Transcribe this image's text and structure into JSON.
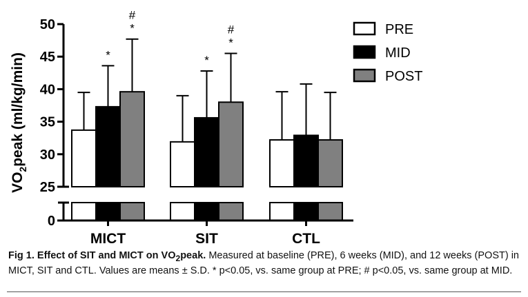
{
  "chart_data": {
    "type": "bar",
    "ylabel_main": "VO",
    "ylabel_sub": "2",
    "ylabel_rest": "peak (ml/kg/min)",
    "categories": [
      "MICT",
      "SIT",
      "CTL"
    ],
    "series": [
      {
        "name": "PRE",
        "values": [
          33.7,
          31.9,
          32.2
        ],
        "errors": [
          5.8,
          7.1,
          7.4
        ],
        "fill": "#ffffff"
      },
      {
        "name": "MID",
        "values": [
          37.3,
          35.6,
          32.9
        ],
        "errors": [
          6.3,
          7.2,
          7.9
        ],
        "fill": "#000000"
      },
      {
        "name": "POST",
        "values": [
          39.6,
          38.0,
          32.2
        ],
        "errors": [
          8.1,
          7.5,
          7.3
        ],
        "fill": "#808080"
      }
    ],
    "annotations": [
      {
        "category": "MICT",
        "series": "MID",
        "lines": [
          "*"
        ]
      },
      {
        "category": "MICT",
        "series": "POST",
        "lines": [
          "#",
          "*"
        ]
      },
      {
        "category": "SIT",
        "series": "MID",
        "lines": [
          "*"
        ]
      },
      {
        "category": "SIT",
        "series": "POST",
        "lines": [
          "#",
          "*"
        ]
      }
    ],
    "yticks_upper": [
      25,
      30,
      35,
      40,
      45,
      50
    ],
    "yticks_lower": [
      0
    ],
    "ylim": [
      0,
      50
    ],
    "axis_break": [
      0,
      25
    ],
    "legend_position": "top-right",
    "grid": false
  },
  "caption": {
    "title_pre": "Fig 1. Effect of SIT and MICT on VO",
    "title_sub": "2",
    "title_post": "peak.",
    "body": " Measured at baseline (PRE), 6 weeks (MID), and 12 weeks (POST) in MICT, SIT and CTL. Values are means ± S.D. * p<0.05, vs. same group at PRE; # p<0.05, vs. same group at MID."
  }
}
